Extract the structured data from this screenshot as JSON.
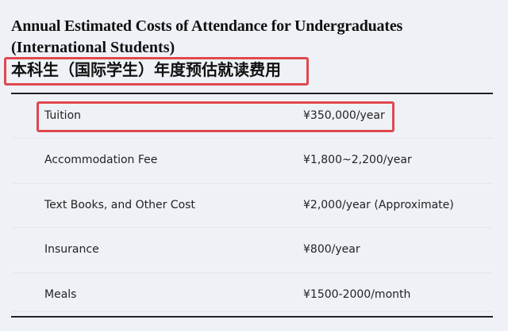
{
  "title_en_line1": "Annual Estimated Costs of Attendance for Undergraduates",
  "title_en_line2": "(International Students)",
  "title_cn": "本科生（国际学生）年度预估就读费用",
  "highlight_color": "#e0484e",
  "rows": [
    {
      "label": "Tuition",
      "value": "¥350,000/year"
    },
    {
      "label": "Accommodation Fee",
      "value": "¥1,800~2,200/year"
    },
    {
      "label": "Text Books, and Other Cost",
      "value": "¥2,000/year (Approximate)"
    },
    {
      "label": "Insurance",
      "value": "¥800/year"
    },
    {
      "label": "Meals",
      "value": "¥1500-2000/month"
    }
  ]
}
